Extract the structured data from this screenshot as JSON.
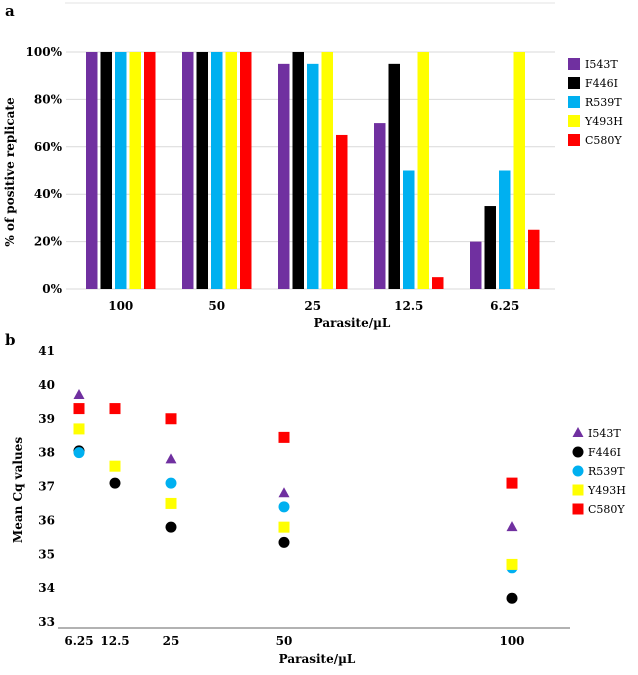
{
  "panel_labels": {
    "a": "a",
    "b": "b"
  },
  "chart_data": [
    {
      "type": "bar",
      "categories": [
        "100",
        "50",
        "25",
        "12.5",
        "6.25"
      ],
      "series": [
        {
          "name": "I543T",
          "color": "#7030A0",
          "values": [
            100,
            100,
            95,
            70,
            20
          ]
        },
        {
          "name": "F446I",
          "color": "#000000",
          "values": [
            100,
            100,
            100,
            95,
            35
          ]
        },
        {
          "name": "R539T",
          "color": "#00B0F0",
          "values": [
            100,
            100,
            95,
            50,
            50
          ]
        },
        {
          "name": "Y493H",
          "color": "#FFFF00",
          "values": [
            100,
            100,
            100,
            100,
            100
          ]
        },
        {
          "name": "C580Y",
          "color": "#FF0000",
          "values": [
            100,
            100,
            65,
            5,
            25
          ]
        }
      ],
      "title": "",
      "xlabel": "Parasite/µL",
      "ylabel": "% of positive replicate",
      "ylim": [
        0,
        100
      ],
      "yticks": [
        "0%",
        "20%",
        "40%",
        "60%",
        "80%",
        "100%"
      ],
      "legend_position": "right"
    },
    {
      "type": "scatter",
      "x_ticks": [
        "6.25",
        "12.5",
        "25",
        "50",
        "100"
      ],
      "series": [
        {
          "name": "I543T",
          "color": "#7030A0",
          "marker": "triangle",
          "x": [
            "6.25",
            "25",
            "50",
            "100"
          ],
          "y": [
            39.7,
            37.8,
            36.8,
            35.8
          ]
        },
        {
          "name": "F446I",
          "color": "#000000",
          "marker": "circle",
          "x": [
            "6.25",
            "12.5",
            "25",
            "50",
            "100"
          ],
          "y": [
            38.05,
            37.1,
            35.8,
            35.35,
            33.7
          ]
        },
        {
          "name": "R539T",
          "color": "#00B0F0",
          "marker": "circle",
          "x": [
            "6.25",
            "25",
            "50",
            "100"
          ],
          "y": [
            38.0,
            37.1,
            36.4,
            34.6
          ]
        },
        {
          "name": "Y493H",
          "color": "#FFFF00",
          "marker": "square",
          "x": [
            "6.25",
            "12.5",
            "25",
            "50",
            "100"
          ],
          "y": [
            38.7,
            37.6,
            36.5,
            35.8,
            34.7
          ]
        },
        {
          "name": "C580Y",
          "color": "#FF0000",
          "marker": "square",
          "x": [
            "6.25",
            "12.5",
            "25",
            "50",
            "100"
          ],
          "y": [
            39.3,
            39.3,
            39.0,
            38.45,
            37.1
          ]
        }
      ],
      "title": "",
      "xlabel": "Parasite/µL",
      "ylabel": "Mean Cq values",
      "ylim": [
        33,
        41
      ],
      "yticks": [
        "33",
        "34",
        "35",
        "36",
        "37",
        "38",
        "39",
        "40",
        "41"
      ],
      "legend_position": "right"
    }
  ]
}
